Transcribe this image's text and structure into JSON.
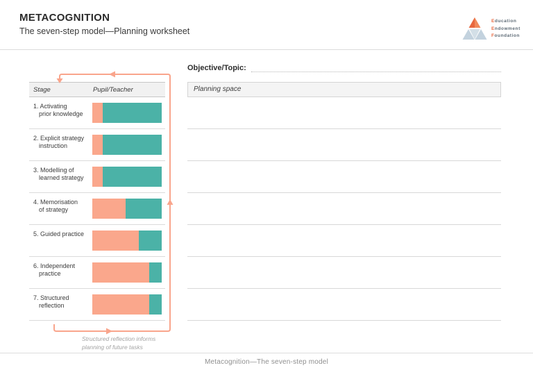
{
  "header": {
    "title": "METACOGNITION",
    "subtitle": "The seven-step model—Planning worksheet"
  },
  "logo": {
    "lines": [
      {
        "initial": "E",
        "rest": "ducation"
      },
      {
        "initial": "E",
        "rest": "ndowment"
      },
      {
        "initial": "F",
        "rest": "oundation"
      }
    ]
  },
  "colors": {
    "pupil_bar": "#FAA78C",
    "teacher_bar": "#4BB2A7",
    "arrow": "#F9A58C",
    "logo_orange": "#E8683F",
    "logo_orange_light": "#F08A5C",
    "logo_blue": "#C3D2DE",
    "logo_blue_light": "#D3DFE7"
  },
  "chart_data": {
    "type": "bar",
    "title": "Pupil/Teacher responsibility by stage",
    "categories": [
      "1. Activating prior knowledge",
      "2. Explicit strategy instruction",
      "3. Modelling of learned strategy",
      "4. Memorisation of strategy",
      "5. Guided practice",
      "6. Independent practice",
      "7. Structured reflection"
    ],
    "series": [
      {
        "name": "Pupil",
        "values": [
          15,
          15,
          15,
          48,
          67,
          82,
          82
        ]
      },
      {
        "name": "Teacher",
        "values": [
          85,
          85,
          85,
          52,
          33,
          18,
          18
        ]
      }
    ],
    "xlabel": "",
    "ylabel": "",
    "ylim": [
      0,
      100
    ],
    "legend_position": "none",
    "grid": false
  },
  "stage_table": {
    "columns": [
      "Stage",
      "Pupil/Teacher"
    ],
    "rows": [
      {
        "line1": "1. Activating",
        "line2": "prior knowledge",
        "pupil_pct": 15
      },
      {
        "line1": "2. Explicit strategy",
        "line2": "instruction",
        "pupil_pct": 15
      },
      {
        "line1": "3. Modelling of",
        "line2": "learned strategy",
        "pupil_pct": 15
      },
      {
        "line1": "4. Memorisation",
        "line2": "of strategy",
        "pupil_pct": 48
      },
      {
        "line1": "5. Guided practice",
        "line2": "",
        "pupil_pct": 67
      },
      {
        "line1": "6. Independent",
        "line2": "practice",
        "pupil_pct": 82
      },
      {
        "line1": "7. Structured",
        "line2": "reflection",
        "pupil_pct": 82
      }
    ],
    "caption_line1": "Structured reflection informs",
    "caption_line2": "planning of future tasks"
  },
  "planning": {
    "objective_label": "Objective/Topic:",
    "space_label": "Planning space",
    "line_count": 7
  },
  "footer": {
    "text": "Metacognition—The seven-step model"
  }
}
